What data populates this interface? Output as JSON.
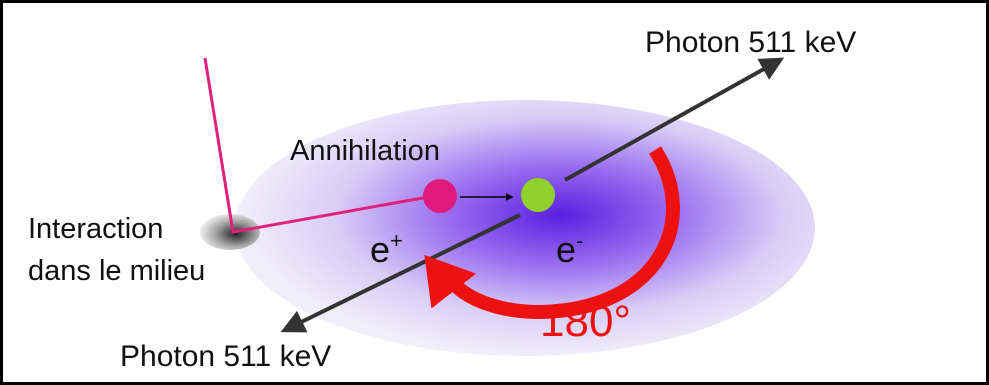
{
  "labels": {
    "photon_top": "Photon 511 keV",
    "photon_bottom": "Photon 511 keV",
    "annihilation": "Annihilation",
    "interaction": [
      "Interaction",
      "dans le milieu"
    ],
    "angle": "180°"
  },
  "particles": {
    "positron": {
      "symbol": "e",
      "charge": "+"
    },
    "electron": {
      "symbol": "e",
      "charge": "-"
    }
  }
}
